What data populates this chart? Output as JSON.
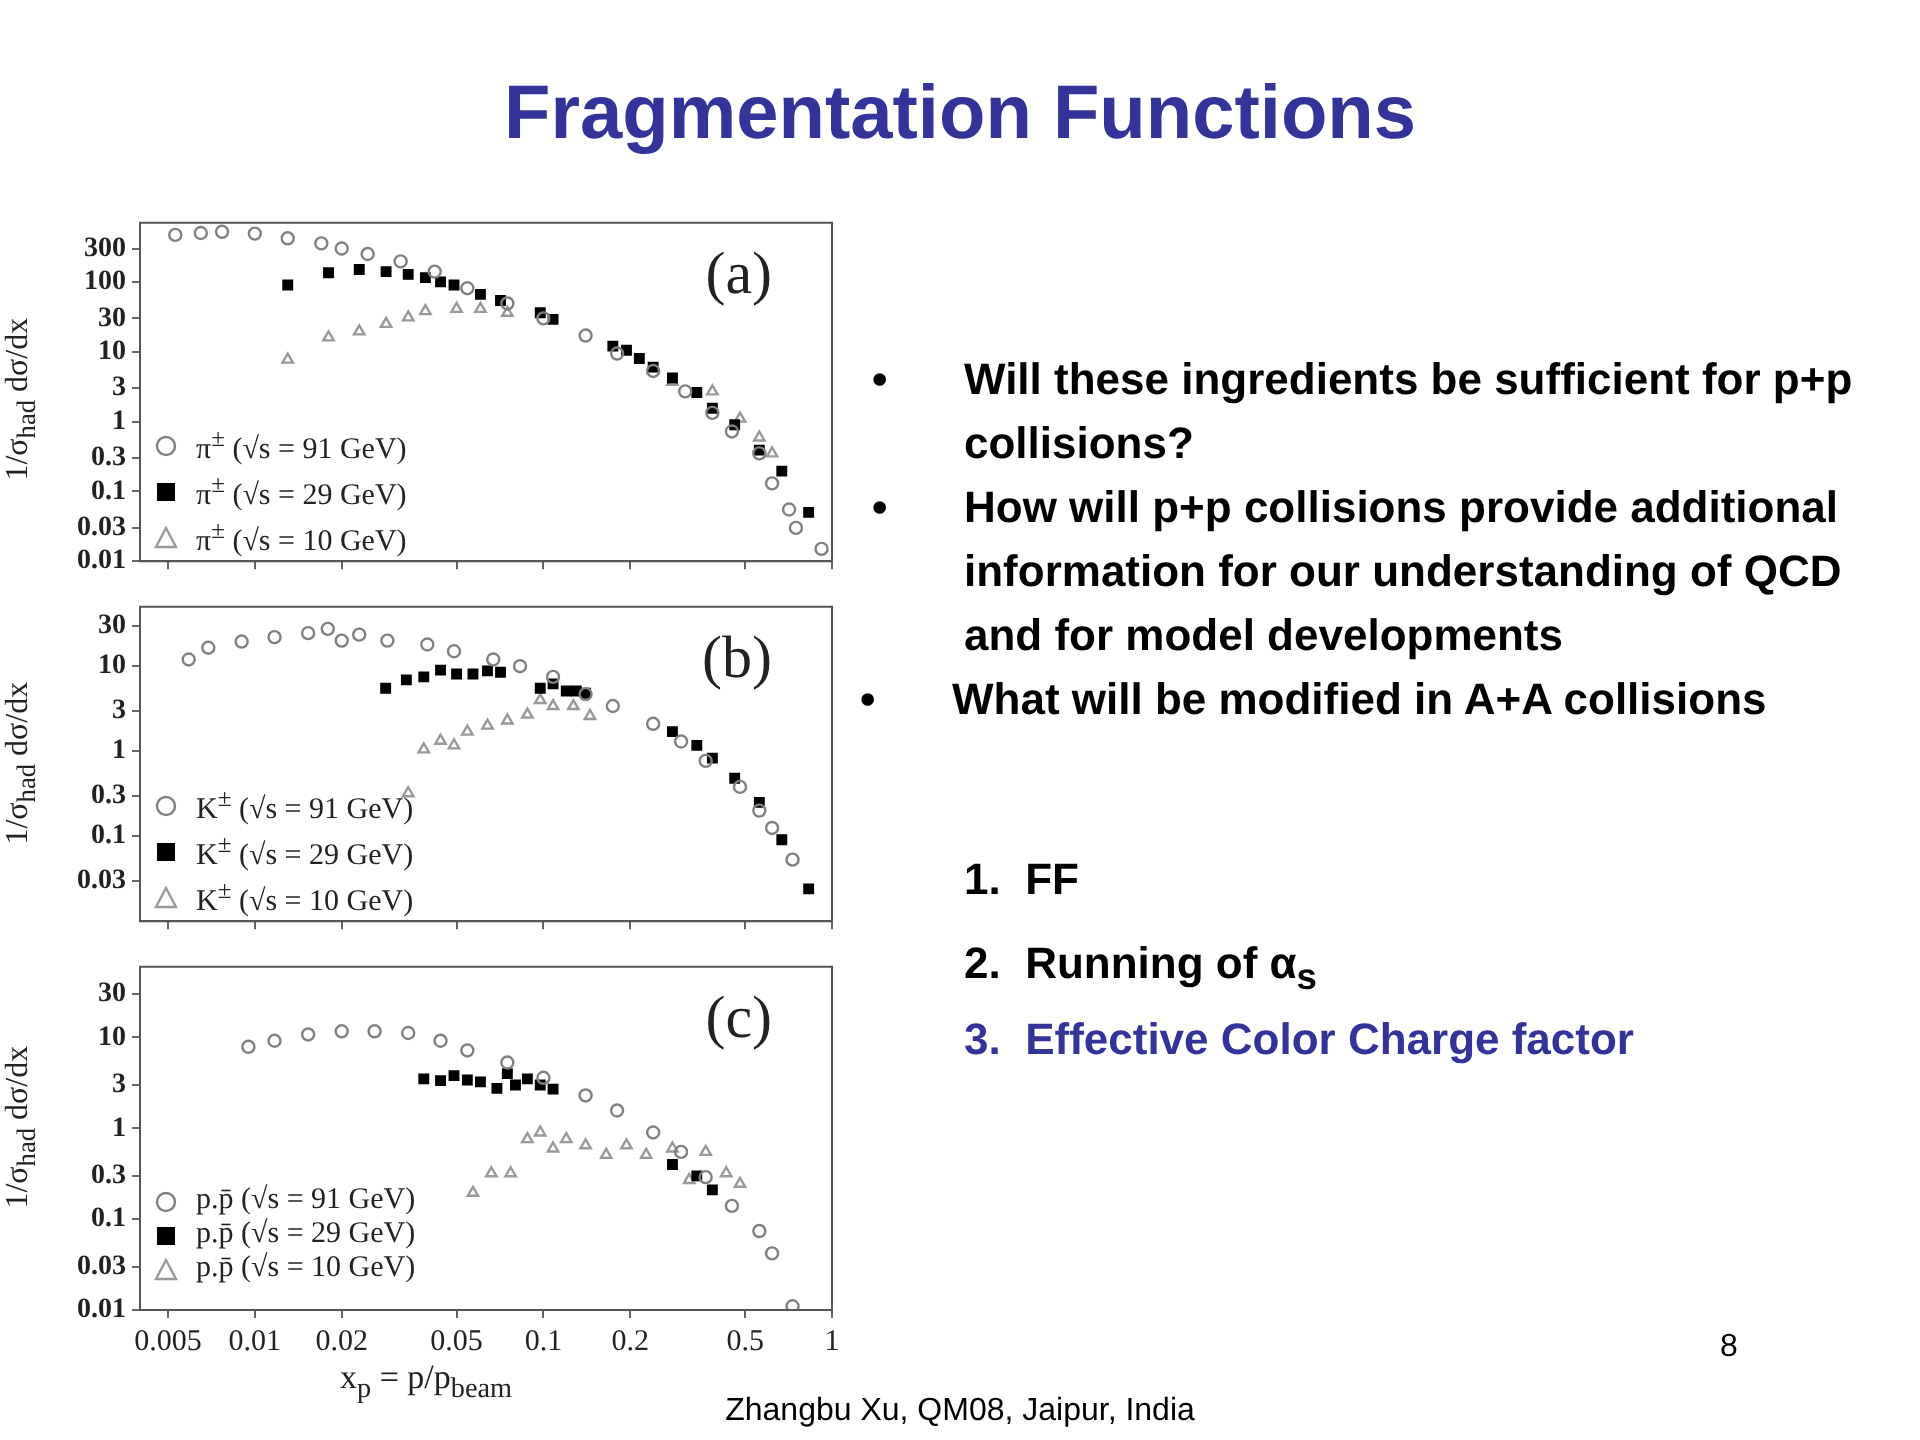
{
  "chart_data": [
    {
      "type": "scatter",
      "ylabel": "1/σ$_{had}$ dσ/dx",
      "log": "xy",
      "xlim": [
        0.004,
        1
      ],
      "ylim": [
        0.01,
        700
      ],
      "xticks": [
        0.005,
        0.01,
        0.02,
        0.05,
        0.1,
        0.2,
        0.5,
        1
      ],
      "yticks": [
        0.01,
        0.03,
        0.1,
        0.3,
        1,
        3,
        10,
        30,
        100,
        300
      ],
      "tick_labels": "y",
      "legend": "bottom left",
      "annotations": [
        "(a)"
      ],
      "series": [
        {
          "name": "π$^{±}$ (√s = 91 GeV)",
          "color": "#808080",
          "marker": "circle",
          "x": [
            0.0053,
            0.0065,
            0.0077,
            0.01,
            0.013,
            0.017,
            0.02,
            0.0246,
            0.032,
            0.042,
            0.0545,
            0.075,
            0.1,
            0.14,
            0.18,
            0.24,
            0.31,
            0.385,
            0.45,
            0.56,
            0.62,
            0.71,
            0.75,
            0.92
          ],
          "values": [
            470,
            500,
            520,
            490,
            420,
            355,
            300,
            250,
            196,
            140,
            81,
            49,
            30,
            17,
            9.4,
            5.3,
            2.7,
            1.33,
            0.72,
            0.35,
            0.13,
            0.055,
            0.03,
            0.015
          ]
        },
        {
          "name": "π$^{±}$ (√s = 29 GeV)",
          "color": "#000000",
          "marker": "square",
          "x": [
            0.013,
            0.018,
            0.023,
            0.0285,
            0.034,
            0.039,
            0.044,
            0.049,
            0.0605,
            0.071,
            0.0975,
            0.108,
            0.174,
            0.194,
            0.215,
            0.24,
            0.28,
            0.34,
            0.385,
            0.46,
            0.56,
            0.67,
            0.83
          ],
          "values": [
            90,
            135,
            150,
            140,
            128,
            115,
            100,
            90,
            66,
            54,
            36,
            29,
            12,
            10.5,
            8,
            6,
            4.2,
            2.6,
            1.55,
            0.9,
            0.39,
            0.195,
            0.05
          ]
        },
        {
          "name": "π$^{±}$ (√s = 10 GeV)",
          "color": "#999999",
          "marker": "triangle",
          "x": [
            0.013,
            0.018,
            0.023,
            0.0285,
            0.034,
            0.039,
            0.05,
            0.0605,
            0.075,
            0.1,
            0.14,
            0.194,
            0.28,
            0.385,
            0.48,
            0.56,
            0.62
          ],
          "values": [
            7.7,
            16,
            19.5,
            25,
            31,
            38,
            41,
            41,
            36,
            null,
            null,
            null,
            3.7,
            2.7,
            1.1,
            0.59,
            0.35
          ]
        }
      ]
    },
    {
      "type": "scatter",
      "ylabel": "1/σ$_{had}$ dσ/dx",
      "log": "xy",
      "xlim": [
        0.004,
        1
      ],
      "ylim": [
        0.01,
        50
      ],
      "xticks": [
        0.005,
        0.01,
        0.02,
        0.05,
        0.1,
        0.2,
        0.5,
        1
      ],
      "yticks": [
        0.03,
        0.1,
        0.3,
        1,
        3,
        10,
        30
      ],
      "tick_labels": "y",
      "legend": "bottom left",
      "annotations": [
        "(b)"
      ],
      "series": [
        {
          "name": "K$^{±}$ (√s = 91 GeV)",
          "color": "#808080",
          "marker": "circle",
          "x": [
            0.0059,
            0.0069,
            0.009,
            0.0117,
            0.0153,
            0.0179,
            0.02,
            0.023,
            0.0288,
            0.0396,
            0.049,
            0.067,
            0.083,
            0.108,
            0.14,
            0.174,
            0.24,
            0.3,
            0.365,
            0.48,
            0.56,
            0.62,
            0.73
          ],
          "values": [
            12,
            16.5,
            19.5,
            22,
            24.5,
            27.5,
            20,
            23.5,
            20,
            18,
            15,
            12,
            10,
            7.5,
            4.7,
            3.4,
            2.1,
            1.3,
            0.77,
            0.38,
            0.2,
            0.125,
            0.053
          ]
        },
        {
          "name": "K$^{±}$ (√s = 29 GeV)",
          "color": "#000000",
          "marker": "square",
          "x": [
            0.0284,
            0.0335,
            0.0385,
            0.044,
            0.05,
            0.057,
            0.064,
            0.071,
            0.0975,
            0.108,
            0.12,
            0.13,
            0.14,
            0.28,
            0.34,
            0.385,
            0.46,
            0.56,
            0.67,
            0.83
          ],
          "values": [
            5.5,
            6.9,
            7.5,
            9,
            8.1,
            8.1,
            8.8,
            8.5,
            5.5,
            6.2,
            5.1,
            5.1,
            4.8,
            1.7,
            1.17,
            0.83,
            0.48,
            0.25,
            0.091,
            0.024
          ]
        },
        {
          "name": "K$^{±}$ (√s = 10 GeV)",
          "color": "#999999",
          "marker": "triangle",
          "x": [
            0.034,
            0.0385,
            0.044,
            0.049,
            0.0545,
            0.064,
            0.075,
            0.088,
            0.0975,
            0.108,
            0.127,
            0.145
          ],
          "values": [
            0.32,
            1.05,
            1.33,
            1.17,
            1.7,
            2,
            2.3,
            2.7,
            4,
            3.4,
            3.4,
            2.6
          ]
        }
      ]
    },
    {
      "type": "scatter",
      "ylabel": "1/σ$_{had}$ dσ/dx",
      "xlabel": "x$_{p}$ = p/p$_{beam}$",
      "log": "xy",
      "xlim": [
        0.004,
        1
      ],
      "ylim": [
        0.01,
        60
      ],
      "xticks": [
        0.005,
        0.01,
        0.02,
        0.05,
        0.1,
        0.2,
        0.5,
        1
      ],
      "yticks": [
        0.01,
        0.03,
        0.1,
        0.3,
        1,
        3,
        10,
        30
      ],
      "legend": "bottom left",
      "annotations": [
        "(c)"
      ],
      "series": [
        {
          "name": "p.p̄ (√s = 91 GeV)",
          "color": "#808080",
          "marker": "circle",
          "x": [
            0.0095,
            0.0117,
            0.0153,
            0.02,
            0.026,
            0.034,
            0.044,
            0.0545,
            0.075,
            0.1,
            0.14,
            0.18,
            0.24,
            0.3,
            0.365,
            0.45,
            0.56,
            0.62,
            0.73
          ],
          "values": [
            7.9,
            9.2,
            10.8,
            11.7,
            11.7,
            11.2,
            9.2,
            7.2,
            5.3,
            3.6,
            2.3,
            1.57,
            0.9,
            0.55,
            0.29,
            0.14,
            0.074,
            0.042,
            0.011
          ]
        },
        {
          "name": "p.p̄ (√s = 29 GeV)",
          "color": "#000000",
          "marker": "square",
          "x": [
            0.0385,
            0.044,
            0.049,
            0.0545,
            0.0605,
            0.069,
            0.075,
            0.08,
            0.088,
            0.0975,
            0.108,
            0.28,
            0.34,
            0.385
          ],
          "values": [
            3.5,
            3.35,
            3.8,
            3.4,
            3.25,
            2.75,
            4,
            3,
            3.5,
            3,
            2.7,
            0.4,
            0.3,
            0.21
          ]
        },
        {
          "name": "p.p̄ (√s = 10 GeV)",
          "color": "#999999",
          "marker": "triangle",
          "x": [
            0.057,
            0.066,
            0.077,
            0.088,
            0.0975,
            0.108,
            0.12,
            0.14,
            0.165,
            0.194,
            0.227,
            0.28,
            0.32,
            0.365,
            0.43,
            0.48
          ],
          "values": [
            0.195,
            0.32,
            0.32,
            0.76,
            0.9,
            0.6,
            0.76,
            0.65,
            0.51,
            0.65,
            0.51,
            0.6,
            0.27,
            0.55,
            0.32,
            0.245
          ]
        }
      ]
    },
    {
      "type": "other",
      "title": "Fragmentation Functions",
      "annotations": [
        "•",
        "Will these ingredients be sufficient for p+p collisions?",
        "•",
        "How will p+p collisions provide additional information for our understanding of QCD and for model developments",
        "•",
        "What will be modified in A+A collisions",
        "1.  FF",
        "2.  Running of α$_{s}$",
        "3.  Effective Color Charge factor",
        "8",
        "Zhangbu Xu, QM08, Jaipur, India"
      ]
    }
  ]
}
